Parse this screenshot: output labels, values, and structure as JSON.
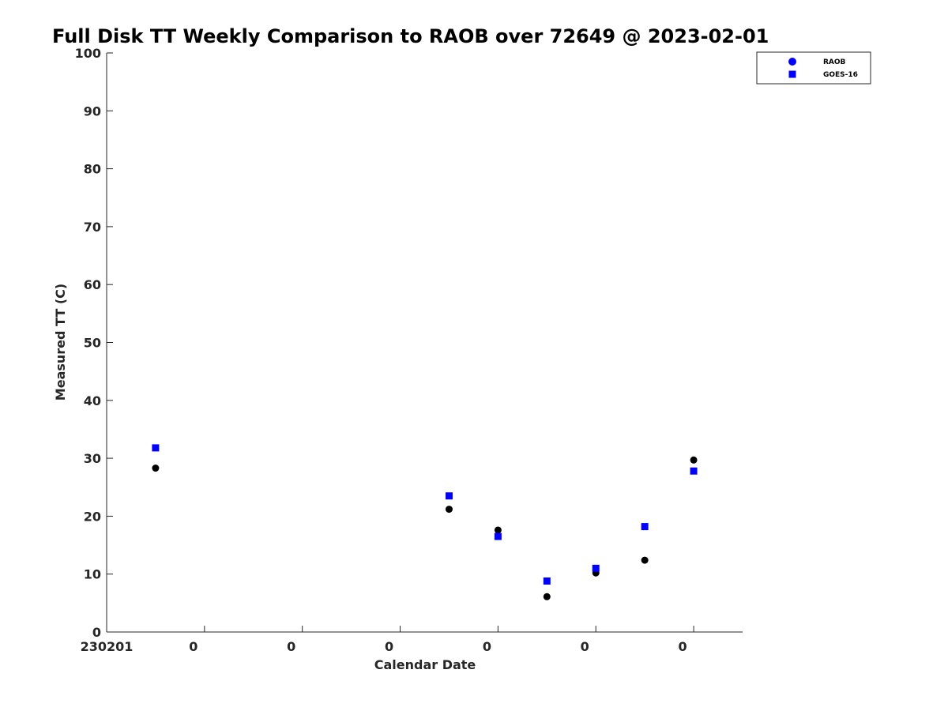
{
  "chart_data": {
    "type": "scatter",
    "title": "Full Disk TT Weekly Comparison to RAOB over 72649 @ 2023-02-01",
    "xlabel": "Calendar Date",
    "ylabel": "Measured TT (C)",
    "ylim": [
      0,
      100
    ],
    "yticks": [
      0,
      10,
      20,
      30,
      40,
      50,
      60,
      70,
      80,
      90,
      100
    ],
    "xlim": [
      0,
      13
    ],
    "xticks": [
      0,
      2,
      4,
      6,
      8,
      10,
      12
    ],
    "xticklabels": [
      "230201",
      "0",
      "0",
      "0",
      "0",
      "0",
      "0"
    ],
    "grid": false,
    "legend_position": "top-right",
    "series": [
      {
        "name": "RAOB",
        "marker": "circle",
        "color": "#000000",
        "legend_color": "#0000ff",
        "x": [
          1,
          7,
          8,
          9,
          10,
          11,
          12
        ],
        "y": [
          28.3,
          21.2,
          17.6,
          6.1,
          10.2,
          12.4,
          29.7
        ]
      },
      {
        "name": "GOES-16",
        "marker": "square",
        "color": "#0000ff",
        "legend_color": "#0000ff",
        "x": [
          1,
          7,
          8,
          9,
          10,
          11,
          12
        ],
        "y": [
          31.8,
          23.5,
          16.5,
          8.8,
          11.0,
          18.2,
          27.8
        ]
      }
    ]
  }
}
